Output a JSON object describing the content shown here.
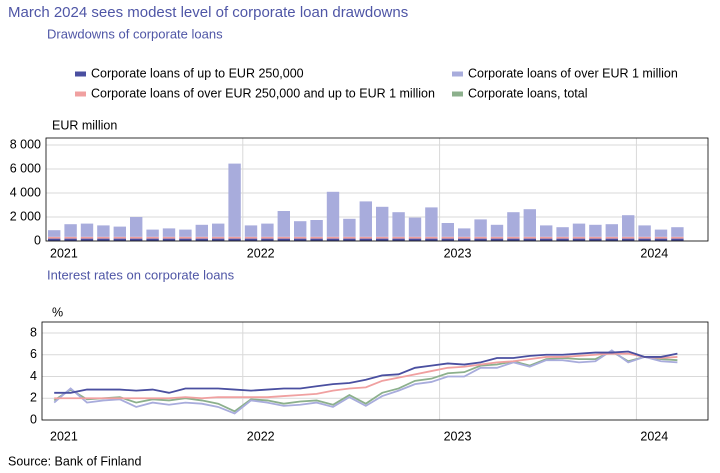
{
  "title": "March 2024 sees modest level of corporate loan drawdowns",
  "source": "Source: Bank of Finland",
  "chart_data": [
    {
      "type": "bar",
      "stacked": true,
      "title": "Drawdowns of corporate loans",
      "ylabel": "EUR million",
      "categories": [
        "2021",
        null,
        null,
        null,
        null,
        null,
        null,
        null,
        null,
        null,
        null,
        null,
        "2022",
        null,
        null,
        null,
        null,
        null,
        null,
        null,
        null,
        null,
        null,
        null,
        "2023",
        null,
        null,
        null,
        null,
        null,
        null,
        null,
        null,
        null,
        null,
        null,
        "2024",
        null,
        null
      ],
      "ylim": [
        0,
        8000
      ],
      "yticks": [
        0,
        {
          "value": 2000,
          "label": "2 000"
        },
        {
          "value": 4000,
          "label": "4 000"
        },
        {
          "value": 6000,
          "label": "6 000"
        },
        {
          "value": 8000,
          "label": "8 000"
        }
      ],
      "grid": true,
      "series": [
        {
          "color": "#4a4fa0",
          "values": [
            200,
            200,
            200,
            200,
            200,
            200,
            200,
            200,
            200,
            200,
            200,
            200,
            200,
            200,
            200,
            200,
            200,
            200,
            200,
            200,
            200,
            200,
            200,
            200,
            200,
            200,
            200,
            200,
            200,
            200,
            200,
            200,
            200,
            200,
            200,
            200,
            200,
            200,
            200
          ]
        },
        {
          "color": "#f0a0a0",
          "values": [
            150,
            150,
            150,
            150,
            150,
            150,
            150,
            150,
            150,
            150,
            150,
            150,
            150,
            150,
            150,
            150,
            150,
            150,
            150,
            150,
            150,
            150,
            150,
            150,
            150,
            150,
            150,
            150,
            150,
            150,
            150,
            150,
            150,
            150,
            150,
            150,
            150,
            150,
            150
          ]
        },
        {
          "color": "#a8acdc",
          "values": [
            550,
            1050,
            1100,
            950,
            850,
            1650,
            600,
            700,
            600,
            1000,
            1100,
            6100,
            950,
            1100,
            2150,
            1300,
            1400,
            3750,
            1500,
            2950,
            2500,
            2050,
            1600,
            2450,
            1150,
            700,
            1450,
            1000,
            2050,
            2300,
            950,
            800,
            1100,
            1000,
            1050,
            1800,
            950,
            600,
            800
          ]
        }
      ]
    },
    {
      "type": "line",
      "title": "Interest rates on corporate loans",
      "ylabel": "%",
      "categories": [
        "2021",
        null,
        null,
        null,
        null,
        null,
        null,
        null,
        null,
        null,
        null,
        null,
        "2022",
        null,
        null,
        null,
        null,
        null,
        null,
        null,
        null,
        null,
        null,
        null,
        "2023",
        null,
        null,
        null,
        null,
        null,
        null,
        null,
        null,
        null,
        null,
        null,
        "2024",
        null,
        null
      ],
      "ylim": [
        0,
        8
      ],
      "yticks": [
        0,
        2,
        4,
        6,
        8
      ],
      "grid": true,
      "series": [
        {
          "name": "Corporate loans  of up to EUR 250,000",
          "color": "#4a4fa0",
          "values": [
            2.5,
            2.5,
            2.8,
            2.8,
            2.8,
            2.7,
            2.8,
            2.5,
            2.9,
            2.9,
            2.9,
            2.8,
            2.7,
            2.8,
            2.9,
            2.9,
            3.1,
            3.3,
            3.4,
            3.7,
            4.1,
            4.2,
            4.8,
            5.0,
            5.2,
            5.1,
            5.3,
            5.7,
            5.7,
            5.9,
            6.0,
            6.0,
            6.1,
            6.2,
            6.2,
            6.3,
            5.8,
            5.8,
            6.1
          ]
        },
        {
          "name": "Corporate loans  of over EUR 250,000 and up to EUR 1 million",
          "color": "#f0a0a0",
          "values": [
            2.0,
            2.0,
            2.0,
            2.0,
            2.0,
            2.0,
            2.0,
            2.0,
            2.1,
            2.0,
            2.1,
            2.1,
            2.1,
            2.1,
            2.2,
            2.3,
            2.4,
            2.7,
            2.9,
            3.0,
            3.6,
            3.9,
            4.2,
            4.5,
            4.8,
            4.9,
            5.1,
            5.3,
            5.4,
            5.6,
            5.8,
            5.8,
            5.9,
            6.0,
            6.1,
            6.1,
            5.8,
            5.7,
            5.8
          ]
        },
        {
          "name": "Corporate loans  of over EUR 1 million",
          "color": "#a8acdc",
          "values": [
            1.6,
            2.9,
            1.6,
            1.8,
            1.9,
            1.2,
            1.6,
            1.4,
            1.6,
            1.5,
            1.2,
            0.6,
            1.8,
            1.6,
            1.3,
            1.4,
            1.6,
            1.2,
            2.1,
            1.3,
            2.2,
            2.7,
            3.3,
            3.5,
            4.0,
            4.0,
            4.8,
            4.8,
            5.3,
            4.9,
            5.5,
            5.5,
            5.3,
            5.4,
            6.4,
            5.3,
            5.8,
            5.4,
            5.3
          ]
        },
        {
          "name": "Corporate loans, total",
          "color": "#8cb08c",
          "values": [
            1.8,
            2.8,
            1.9,
            2.0,
            2.1,
            1.6,
            1.9,
            1.8,
            2.0,
            1.8,
            1.5,
            0.8,
            1.9,
            1.8,
            1.5,
            1.7,
            1.8,
            1.4,
            2.3,
            1.5,
            2.5,
            2.9,
            3.6,
            3.8,
            4.3,
            4.4,
            5.0,
            5.1,
            5.4,
            5.0,
            5.6,
            5.7,
            5.6,
            5.6,
            6.3,
            5.4,
            5.8,
            5.6,
            5.5
          ]
        }
      ]
    }
  ]
}
